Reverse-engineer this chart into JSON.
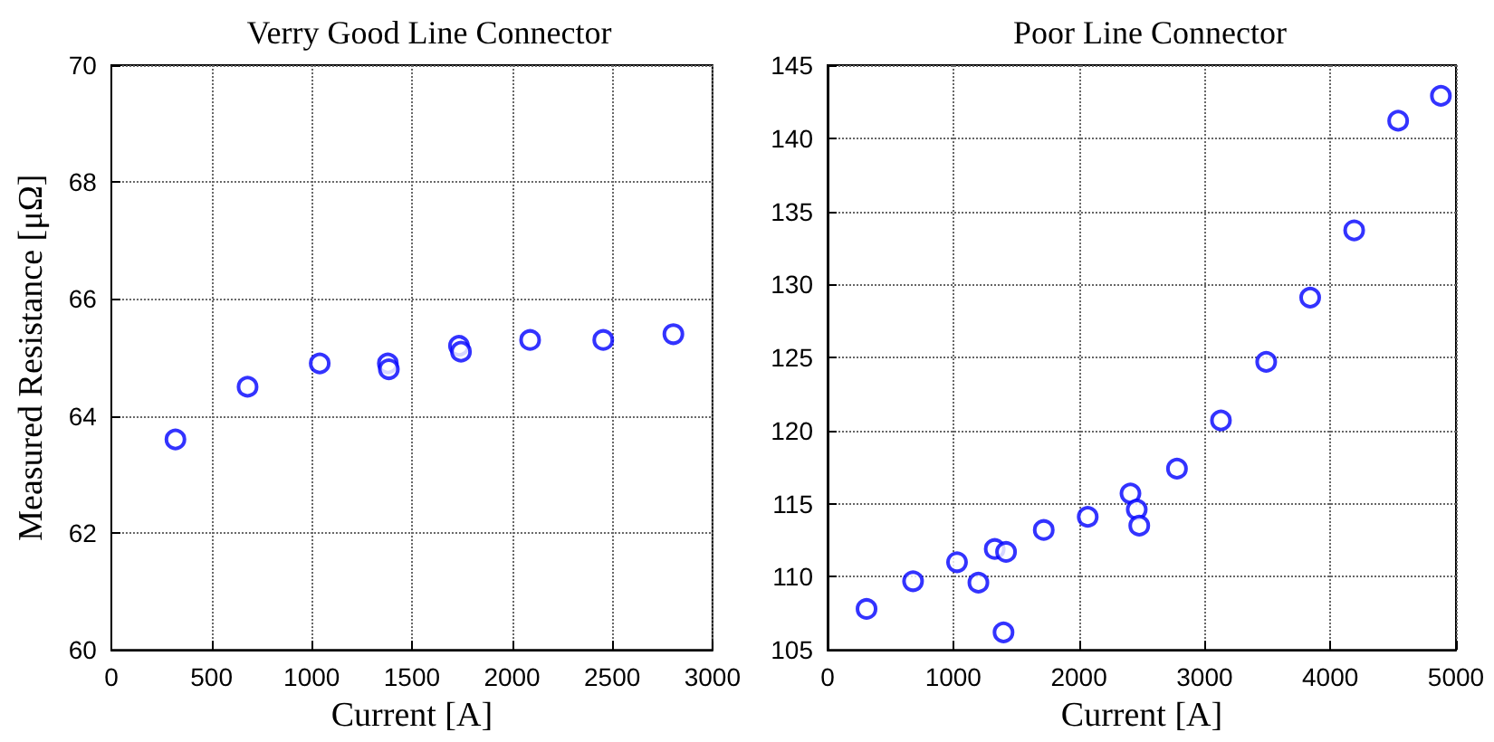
{
  "chart_data": [
    {
      "type": "scatter",
      "title": "Verry Good Line Connector",
      "xlabel": "Current [A]",
      "ylabel": "Measured Resistance [μΩ]",
      "color": "#0000ff",
      "marker": "circle",
      "grid": true,
      "x": [
        320,
        680,
        1040,
        1380,
        1385,
        1735,
        1745,
        2090,
        2455,
        2805
      ],
      "values": [
        63.6,
        64.5,
        64.9,
        64.9,
        64.8,
        65.2,
        65.1,
        65.3,
        65.3,
        65.4
      ],
      "xlim": [
        0,
        3000
      ],
      "xticks": [
        0,
        500,
        1000,
        1500,
        2000,
        2500,
        3000
      ],
      "ylim": [
        60,
        70
      ],
      "yticks": [
        60,
        62,
        64,
        66,
        68,
        70
      ]
    },
    {
      "type": "scatter",
      "title": "Poor Line Connector",
      "xlabel": "Current [A]",
      "color": "#0000ff",
      "marker": "circle",
      "grid": true,
      "x": [
        310,
        680,
        1030,
        1200,
        1330,
        1420,
        1400,
        1720,
        2070,
        2410,
        2460,
        2480,
        2780,
        3130,
        3490,
        3840,
        4190,
        4540,
        4880
      ],
      "values": [
        107.8,
        109.7,
        111.0,
        109.6,
        111.9,
        111.7,
        106.2,
        113.2,
        114.1,
        115.7,
        114.6,
        113.5,
        117.4,
        120.7,
        124.7,
        129.1,
        133.7,
        141.2,
        142.9
      ],
      "xlim": [
        0,
        5000
      ],
      "xticks": [
        0,
        1000,
        2000,
        3000,
        4000,
        5000
      ],
      "ylim": [
        105,
        145
      ],
      "yticks": [
        105,
        110,
        115,
        120,
        125,
        130,
        135,
        140,
        145
      ]
    }
  ]
}
